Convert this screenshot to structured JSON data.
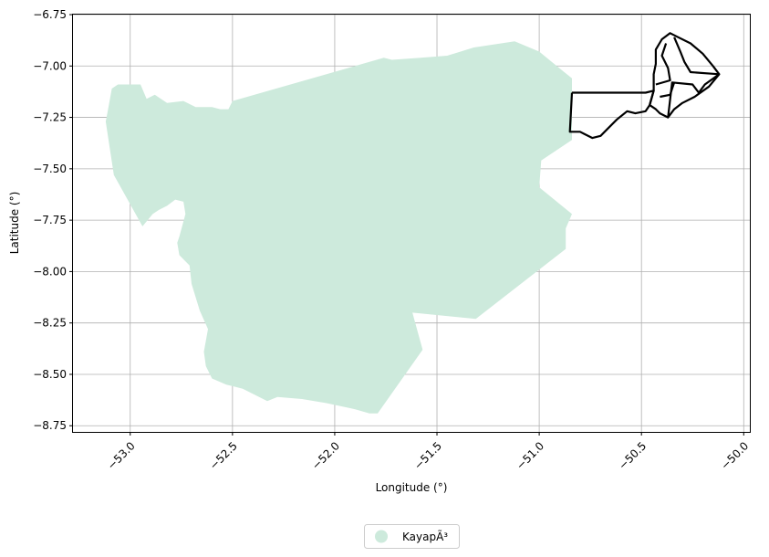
{
  "chart_data": {
    "type": "map",
    "xlabel": "Longitude (°)",
    "ylabel": "Latitude (°)",
    "xlim": [
      -53.28,
      -49.97
    ],
    "ylim": [
      -8.78,
      -6.75
    ],
    "grid": true,
    "xticks": [
      {
        "value": -53.0,
        "label": "−53.0"
      },
      {
        "value": -52.5,
        "label": "−52.5"
      },
      {
        "value": -52.0,
        "label": "−52.0"
      },
      {
        "value": -51.5,
        "label": "−51.5"
      },
      {
        "value": -51.0,
        "label": "−51.0"
      },
      {
        "value": -50.5,
        "label": "−50.5"
      },
      {
        "value": -50.0,
        "label": "−50.0"
      }
    ],
    "yticks": [
      {
        "value": -6.75,
        "label": "−6.75"
      },
      {
        "value": -7.0,
        "label": "−7.00"
      },
      {
        "value": -7.25,
        "label": "−7.25"
      },
      {
        "value": -7.5,
        "label": "−7.50"
      },
      {
        "value": -7.75,
        "label": "−7.75"
      },
      {
        "value": -8.0,
        "label": "−8.00"
      },
      {
        "value": -8.25,
        "label": "−8.25"
      },
      {
        "value": -8.5,
        "label": "−8.50"
      },
      {
        "value": -8.75,
        "label": "−8.75"
      }
    ],
    "region": {
      "name": "KayapÃ³",
      "fill_color": "#cdeadc",
      "polygon": [
        [
          -53.11,
          -7.22
        ],
        [
          -53.09,
          -7.11
        ],
        [
          -53.06,
          -7.09
        ],
        [
          -52.95,
          -7.09
        ],
        [
          -52.92,
          -7.16
        ],
        [
          -52.88,
          -7.14
        ],
        [
          -52.82,
          -7.18
        ],
        [
          -52.74,
          -7.17
        ],
        [
          -52.68,
          -7.2
        ],
        [
          -52.6,
          -7.2
        ],
        [
          -52.56,
          -7.21
        ],
        [
          -52.52,
          -7.21
        ],
        [
          -52.5,
          -7.17
        ],
        [
          -51.76,
          -6.96
        ],
        [
          -51.72,
          -6.97
        ],
        [
          -51.58,
          -6.96
        ],
        [
          -51.45,
          -6.95
        ],
        [
          -51.32,
          -6.91
        ],
        [
          -51.12,
          -6.88
        ],
        [
          -51.0,
          -6.93
        ],
        [
          -50.89,
          -7.02
        ],
        [
          -50.84,
          -7.06
        ],
        [
          -50.84,
          -7.36
        ],
        [
          -50.99,
          -7.46
        ],
        [
          -51.0,
          -7.59
        ],
        [
          -50.84,
          -7.72
        ],
        [
          -50.87,
          -7.79
        ],
        [
          -50.87,
          -7.89
        ],
        [
          -51.31,
          -8.23
        ],
        [
          -51.62,
          -8.2
        ],
        [
          -51.57,
          -8.38
        ],
        [
          -51.79,
          -8.69
        ],
        [
          -51.83,
          -8.69
        ],
        [
          -51.9,
          -8.67
        ],
        [
          -52.04,
          -8.64
        ],
        [
          -52.16,
          -8.62
        ],
        [
          -52.28,
          -8.61
        ],
        [
          -52.33,
          -8.63
        ],
        [
          -52.45,
          -8.57
        ],
        [
          -52.53,
          -8.55
        ],
        [
          -52.6,
          -8.52
        ],
        [
          -52.63,
          -8.46
        ],
        [
          -52.64,
          -8.39
        ],
        [
          -52.62,
          -8.28
        ],
        [
          -52.66,
          -8.19
        ],
        [
          -52.7,
          -8.06
        ],
        [
          -52.71,
          -7.97
        ],
        [
          -52.76,
          -7.92
        ],
        [
          -52.77,
          -7.86
        ],
        [
          -52.76,
          -7.83
        ],
        [
          -52.73,
          -7.72
        ],
        [
          -52.74,
          -7.66
        ],
        [
          -52.78,
          -7.65
        ],
        [
          -52.82,
          -7.68
        ],
        [
          -52.86,
          -7.7
        ],
        [
          -52.89,
          -7.72
        ],
        [
          -52.94,
          -7.78
        ],
        [
          -53.08,
          -7.53
        ],
        [
          -53.12,
          -7.27
        ]
      ]
    },
    "outlines": [
      {
        "name": "outline-west",
        "points": [
          [
            -50.84,
            -7.13
          ],
          [
            -50.48,
            -7.13
          ],
          [
            -50.44,
            -7.12
          ],
          [
            -50.46,
            -7.19
          ],
          [
            -50.48,
            -7.22
          ],
          [
            -50.53,
            -7.23
          ],
          [
            -50.57,
            -7.22
          ],
          [
            -50.62,
            -7.26
          ],
          [
            -50.66,
            -7.3
          ],
          [
            -50.7,
            -7.34
          ],
          [
            -50.74,
            -7.35
          ],
          [
            -50.78,
            -7.33
          ],
          [
            -50.8,
            -7.32
          ],
          [
            -50.85,
            -7.32
          ],
          [
            -50.84,
            -7.13
          ]
        ]
      },
      {
        "name": "outline-east",
        "points": [
          [
            -50.46,
            -7.19
          ],
          [
            -50.43,
            -7.21
          ],
          [
            -50.41,
            -7.23
          ],
          [
            -50.37,
            -7.25
          ],
          [
            -50.34,
            -7.21
          ],
          [
            -50.3,
            -7.18
          ],
          [
            -50.24,
            -7.15
          ],
          [
            -50.17,
            -7.1
          ],
          [
            -50.12,
            -7.04
          ],
          [
            -50.15,
            -7.0
          ],
          [
            -50.2,
            -6.94
          ],
          [
            -50.26,
            -6.89
          ],
          [
            -50.32,
            -6.86
          ],
          [
            -50.36,
            -6.84
          ],
          [
            -50.4,
            -6.87
          ],
          [
            -50.43,
            -6.92
          ],
          [
            -50.43,
            -6.99
          ],
          [
            -50.44,
            -7.04
          ],
          [
            -50.44,
            -7.12
          ],
          [
            -50.46,
            -7.19
          ]
        ]
      },
      {
        "name": "outline-inner-a",
        "points": [
          [
            -50.12,
            -7.04
          ],
          [
            -50.26,
            -7.03
          ],
          [
            -50.29,
            -6.98
          ],
          [
            -50.31,
            -6.93
          ],
          [
            -50.34,
            -6.86
          ]
        ]
      },
      {
        "name": "outline-inner-b",
        "points": [
          [
            -50.37,
            -7.25
          ],
          [
            -50.35,
            -7.08
          ],
          [
            -50.25,
            -7.09
          ],
          [
            -50.22,
            -7.13
          ],
          [
            -50.19,
            -7.09
          ],
          [
            -50.12,
            -7.04
          ]
        ]
      },
      {
        "name": "outline-inner-c",
        "points": [
          [
            -50.43,
            -7.09
          ],
          [
            -50.36,
            -7.07
          ],
          [
            -50.37,
            -7.01
          ],
          [
            -50.4,
            -6.95
          ],
          [
            -50.38,
            -6.89
          ]
        ]
      },
      {
        "name": "outline-inner-d",
        "points": [
          [
            -50.41,
            -7.15
          ],
          [
            -50.36,
            -7.14
          ],
          [
            -50.34,
            -7.08
          ]
        ]
      }
    ],
    "legend": {
      "placement": "bottom-center",
      "entries": [
        {
          "label": "KayapÃ³",
          "color": "#cdeadc"
        }
      ]
    }
  }
}
